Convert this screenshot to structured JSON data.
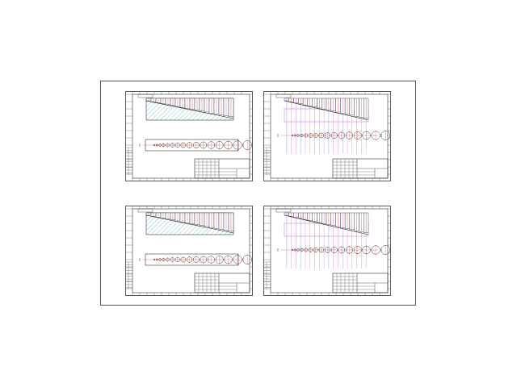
{
  "sheet": {
    "drawings": [
      {
        "id": "drawing-1",
        "style": "hatched"
      },
      {
        "id": "drawing-2",
        "style": "colored-lines"
      },
      {
        "id": "drawing-3",
        "style": "hatched"
      },
      {
        "id": "drawing-4",
        "style": "colored-lines"
      }
    ],
    "circle_count": 18,
    "column_count": 18,
    "colors": {
      "frame": "#333333",
      "hatch": "#3aa6a6",
      "accent_red": "#d02020",
      "accent_magenta": "#c040c0",
      "accent_blue": "#3050d0",
      "line_dark": "#111111"
    }
  }
}
